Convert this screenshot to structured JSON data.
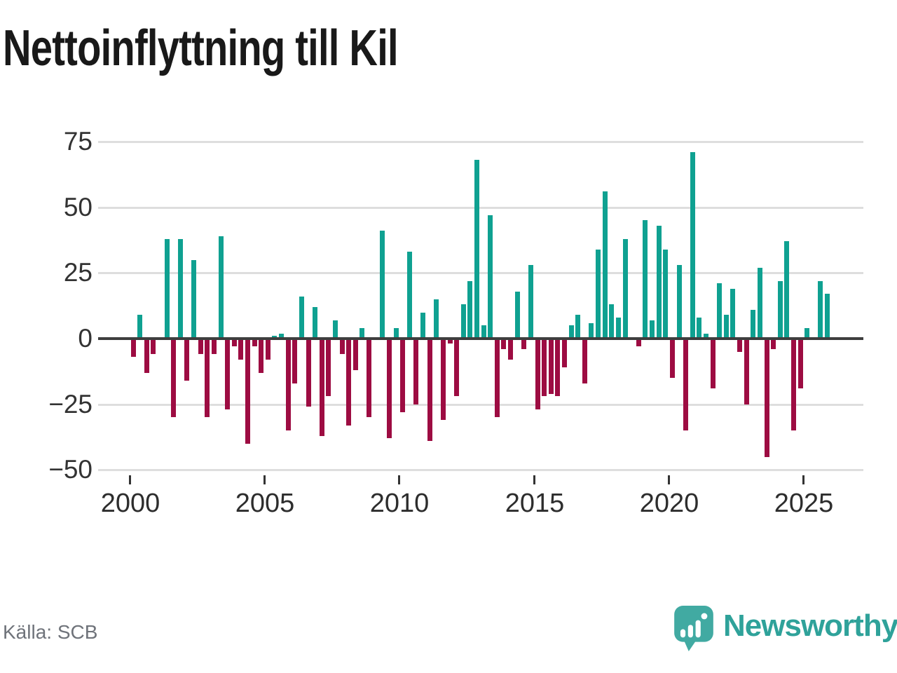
{
  "chart_data": {
    "type": "bar",
    "title": "Nettoinflyttning till Kil",
    "source": "Källa: SCB",
    "frequency": "quarterly",
    "start_period": "2000 Q1",
    "end_period": "2025 Q4",
    "x_tick_labels": [
      "2000",
      "2005",
      "2010",
      "2015",
      "2020",
      "2025"
    ],
    "y_ticks": [
      75,
      50,
      25,
      0,
      -25,
      -50
    ],
    "y_tick_labels": [
      "75",
      "50",
      "25",
      "0",
      "−25",
      "−50"
    ],
    "ylim": [
      -50,
      75
    ],
    "grid": "horizontal",
    "legend": "none",
    "colors": {
      "positive_bar": "#0fa191",
      "negative_bar": "#9d0c42",
      "zero_axis": "#3e3e3e",
      "gridline": "#dedede",
      "tick_text": "#333333",
      "title_text": "#191919",
      "source_text": "#6f737a"
    },
    "series": [
      {
        "name": "Nettoinflyttning till Kil",
        "values": [
          -7,
          9,
          -13,
          -6,
          0,
          38,
          -30,
          38,
          -16,
          30,
          -6,
          -30,
          -6,
          39,
          -27,
          -3,
          -8,
          -40,
          -3,
          -13,
          -8,
          1,
          2,
          -35,
          -17,
          16,
          -26,
          12,
          -37,
          -22,
          7,
          -6,
          -33,
          -12,
          4,
          -30,
          0,
          41,
          -38,
          4,
          -28,
          33,
          -25,
          10,
          -39,
          15,
          -31,
          -2,
          -22,
          13,
          22,
          68,
          5,
          47,
          -30,
          -4,
          -8,
          18,
          -4,
          28,
          -27,
          -22,
          -21,
          -22,
          -11,
          5,
          9,
          -17,
          6,
          34,
          56,
          13,
          8,
          38,
          0,
          -3,
          45,
          7,
          43,
          34,
          -15,
          28,
          -35,
          71,
          8,
          2,
          -19,
          21,
          9,
          19,
          -5,
          -25,
          11,
          27,
          -45,
          -4,
          22,
          37,
          -35,
          -19,
          4,
          0,
          22,
          17
        ]
      }
    ]
  },
  "branding": {
    "wordmark": "Newsworthy",
    "wordmark_color": "#2fa29a",
    "bubble_color": "#41aaa2"
  }
}
